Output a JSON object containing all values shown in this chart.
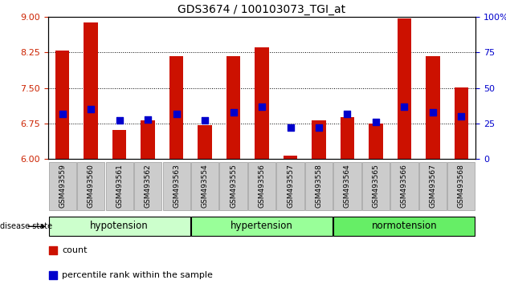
{
  "title": "GDS3674 / 100103073_TGI_at",
  "samples": [
    "GSM493559",
    "GSM493560",
    "GSM493561",
    "GSM493562",
    "GSM493563",
    "GSM493554",
    "GSM493555",
    "GSM493556",
    "GSM493557",
    "GSM493558",
    "GSM493564",
    "GSM493565",
    "GSM493566",
    "GSM493567",
    "GSM493568"
  ],
  "count_values": [
    8.3,
    8.88,
    6.62,
    6.82,
    8.18,
    6.72,
    8.18,
    8.36,
    6.08,
    6.82,
    6.88,
    6.75,
    8.97,
    8.18,
    7.52
  ],
  "percentile_values": [
    32,
    35,
    27,
    28,
    32,
    27,
    33,
    37,
    22,
    22,
    32,
    26,
    37,
    33,
    30
  ],
  "group_labels": [
    "hypotension",
    "hypertension",
    "normotension"
  ],
  "group_starts": [
    0,
    5,
    10
  ],
  "group_ends": [
    4,
    9,
    14
  ],
  "group_colors": [
    "#ccffcc",
    "#99ff99",
    "#66ee66"
  ],
  "ylim_left": [
    6,
    9
  ],
  "ylim_right": [
    0,
    100
  ],
  "yticks_left": [
    6,
    6.75,
    7.5,
    8.25,
    9
  ],
  "yticks_right": [
    0,
    25,
    50,
    75,
    100
  ],
  "bar_color": "#cc1100",
  "dot_color": "#0000cc",
  "left_tick_color": "#cc2200",
  "right_tick_color": "#0000cc",
  "bar_width": 0.5,
  "dot_size": 35,
  "tick_label_bg": "#cccccc"
}
